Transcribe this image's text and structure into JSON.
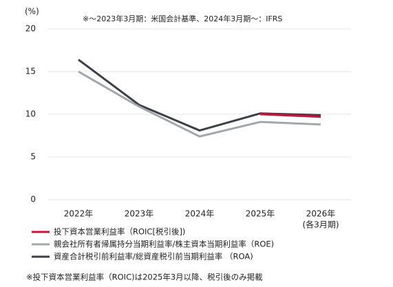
{
  "chart_data": {
    "type": "line",
    "y_label": "(%)",
    "note": "※～2023年3月期：米国会計基準、2024年3月期～：IFRS",
    "categories": [
      "2022年",
      "2023年",
      "2024年",
      "2025年",
      "2026年"
    ],
    "x_note": "(各3月期)",
    "series": [
      {
        "name": "投下資本営業利益率（ROIC[税引後])",
        "color": "#d0103a",
        "values": [
          null,
          null,
          null,
          10.0,
          9.7
        ]
      },
      {
        "name": "親会社所有者帰属持分当期利益率/株主資本当期利益率（ROE)",
        "color": "#a3a6aa",
        "values": [
          15.0,
          10.9,
          7.4,
          9.1,
          8.8
        ]
      },
      {
        "name": "資産合計税引前利益率/総資産税引前当期利益率 （ROA)",
        "color": "#3c3f44",
        "values": [
          16.4,
          11.1,
          8.1,
          10.1,
          9.9
        ]
      }
    ],
    "ylim": [
      0,
      20
    ],
    "yticks": [
      0,
      5,
      10,
      15,
      20
    ],
    "grid": true,
    "footnote": "※投下資本営業利益率（ROIC)は2025年3月以降、税引後のみ掲載"
  }
}
